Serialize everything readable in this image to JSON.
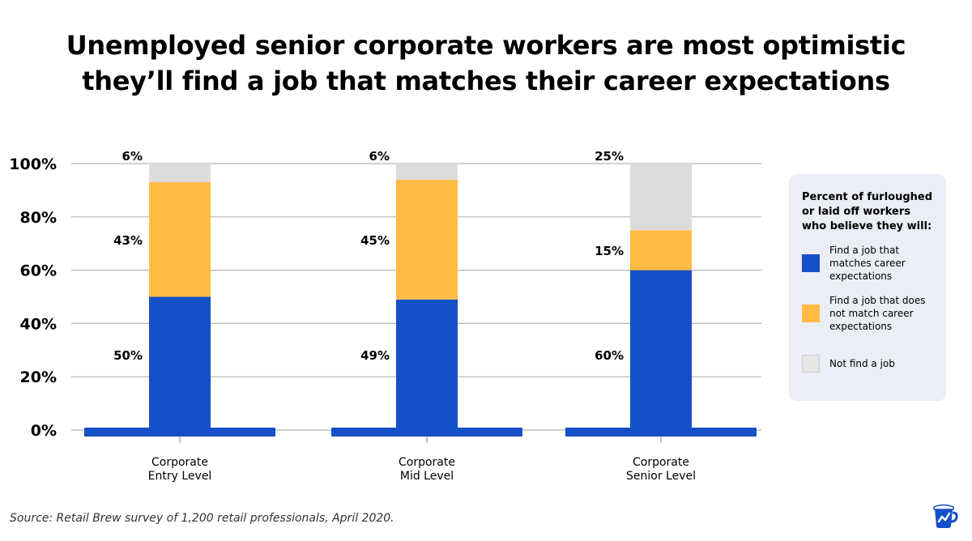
{
  "title_lines": [
    "Unemployed senior corporate workers are most optimistic",
    "they’ll find a job that matches their career expectations"
  ],
  "chart_data": {
    "type": "bar",
    "stacked": true,
    "categories": [
      [
        "Corporate",
        "Entry Level"
      ],
      [
        "Corporate",
        "Mid Level"
      ],
      [
        "Corporate",
        "Senior Level"
      ]
    ],
    "yticks": [
      "0%",
      "20%",
      "40%",
      "60%",
      "80%",
      "100%"
    ],
    "ylim": [
      0,
      100
    ],
    "grid": true,
    "series": [
      {
        "name": "Find a job that matches career expectations",
        "color": "#1450c8",
        "values": [
          50,
          49,
          60
        ],
        "labels": [
          "50%",
          "49%",
          "60%"
        ]
      },
      {
        "name": "Find a job that does not match career expectations",
        "color": "#ffbb44",
        "values": [
          43,
          45,
          15
        ],
        "labels": [
          "43%",
          "45%",
          "15%"
        ]
      },
      {
        "name": "Not find a job",
        "color": "#dcdcdc",
        "values": [
          6,
          6,
          25
        ],
        "labels": [
          "6%",
          "6%",
          "25%"
        ]
      }
    ],
    "legend_position": "right"
  },
  "legend": {
    "title": "Percent of furloughed or laid off workers who believe they will:",
    "items": [
      {
        "label": "Find a job that matches career expectations",
        "color": "#1450c8"
      },
      {
        "label": "Find a job that does not match career expectations",
        "color": "#ffbb44"
      },
      {
        "label": "Not find a job",
        "color": "#e6e6e6"
      }
    ]
  },
  "source": "Source: Retail Brew survey of 1,200 retail professionals, April 2020.",
  "logo_icon": "retail-brew-mug-icon"
}
